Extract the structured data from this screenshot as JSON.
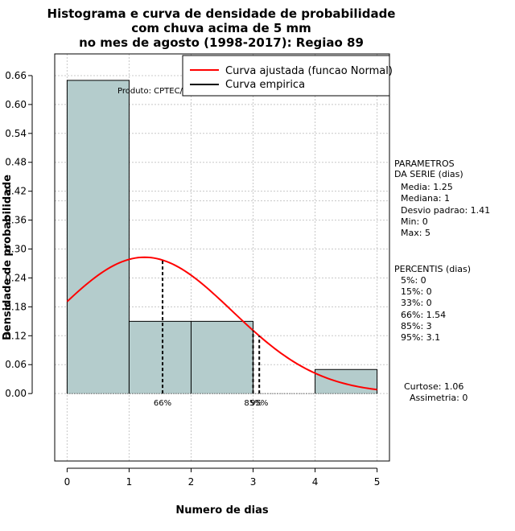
{
  "chart_data": {
    "type": "bar",
    "title_lines": [
      "Histograma e curva de densidade de probabilidade",
      "com chuva acima de 5 mm",
      "no mes de agosto (1998-2017): Regiao 89"
    ],
    "xlabel": "Numero de dias",
    "ylabel": "Densidade de probabilidade",
    "xlim": [
      -0.2,
      5.2
    ],
    "ylim": [
      -0.14,
      0.705
    ],
    "x_ticks": [
      "0",
      "1",
      "2",
      "3",
      "4",
      "5"
    ],
    "y_ticks": [
      "0.00",
      "0.06",
      "0.12",
      "0.18",
      "0.24",
      "0.30",
      "0.36",
      "0.42",
      "0.48",
      "0.54",
      "0.60",
      "0.66"
    ],
    "bins": [
      {
        "start": 0,
        "end": 1,
        "density": 0.65
      },
      {
        "start": 1,
        "end": 2,
        "density": 0.15
      },
      {
        "start": 2,
        "end": 3,
        "density": 0.15
      },
      {
        "start": 3,
        "end": 4,
        "density": 0.0
      },
      {
        "start": 4,
        "end": 5,
        "density": 0.05
      }
    ],
    "bar_color": "#b4cccc",
    "normal_curve": {
      "mean": 1.25,
      "sd": 1.41,
      "color": "#ff0000",
      "x_range": [
        0,
        5
      ]
    },
    "percentile_lines": [
      {
        "x": 1.54,
        "label": "66%"
      },
      {
        "x": 3.0,
        "label": "85%"
      },
      {
        "x": 3.1,
        "label": "95%"
      }
    ],
    "ref_hline": 0.4,
    "legend": [
      {
        "label": "Curva ajustada (funcao Normal)",
        "color": "#ff0000"
      },
      {
        "label": "Curva empirica",
        "color": "#000000"
      }
    ],
    "watermark": "Produto: CPTEC/INPE",
    "parametros": {
      "heading1": "PARAMETROS",
      "heading2": "DA SERIE (dias)",
      "lines": [
        "Media: 1.25",
        "Mediana: 1",
        "Desvio padrao: 1.41",
        "Min: 0",
        "Max: 5"
      ]
    },
    "percentis": {
      "heading": "PERCENTIS (dias)",
      "lines": [
        "5%: 0",
        "15%: 0",
        "33%: 0",
        "66%: 1.54",
        "85%: 3",
        "95%: 3.1"
      ]
    },
    "stats": [
      "Curtose: 1.06",
      "Assimetria: 0"
    ]
  }
}
